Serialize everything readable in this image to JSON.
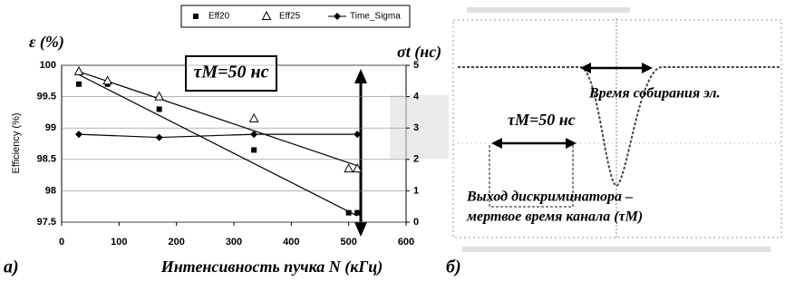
{
  "chart_data": {
    "type": "scatter",
    "panel_label": "а)",
    "left_axis_title": "ε (%)",
    "right_axis_title": "σt (нс)",
    "y_label": "Efficiency (%)",
    "x_label": "Интенсивность пучка N (кГц)",
    "annotation": "τM=50 нс",
    "xlim": [
      0,
      600
    ],
    "xticks": [
      0,
      100,
      200,
      300,
      400,
      500,
      600
    ],
    "ylim": [
      97.5,
      100
    ],
    "yticks": [
      97.5,
      98,
      98.5,
      99,
      99.5,
      100
    ],
    "y2lim": [
      0,
      5
    ],
    "y2ticks": [
      0,
      1,
      2,
      3,
      4,
      5
    ],
    "series": [
      {
        "name": "Eff20",
        "color": "#000000",
        "marker": "square",
        "x": [
          30,
          80,
          170,
          335,
          500,
          515
        ],
        "values": [
          99.7,
          99.7,
          99.3,
          98.65,
          97.65,
          97.65
        ],
        "trend": {
          "x": [
            30,
            515
          ],
          "values": [
            99.85,
            97.6
          ]
        }
      },
      {
        "name": "Eff25",
        "color": "#000000",
        "marker": "triangle",
        "x": [
          30,
          80,
          170,
          335,
          500,
          515
        ],
        "values": [
          99.9,
          99.75,
          99.5,
          99.15,
          98.35,
          98.35
        ],
        "trend": {
          "x": [
            30,
            515
          ],
          "values": [
            99.9,
            98.4
          ]
        }
      },
      {
        "name": "Time_Sigma",
        "color": "#000000",
        "marker": "diamond",
        "axis": "y2",
        "x": [
          30,
          170,
          335,
          515
        ],
        "values": [
          2.8,
          2.7,
          2.8,
          2.8
        ]
      }
    ]
  },
  "panel_b": {
    "panel_label": "б)",
    "collection_time": "Время собирания эл.",
    "dead_time": "τM=50 нс",
    "caption_line1": "Выход дискриминатора –",
    "caption_line2": "мертвое время канала (τM)"
  }
}
